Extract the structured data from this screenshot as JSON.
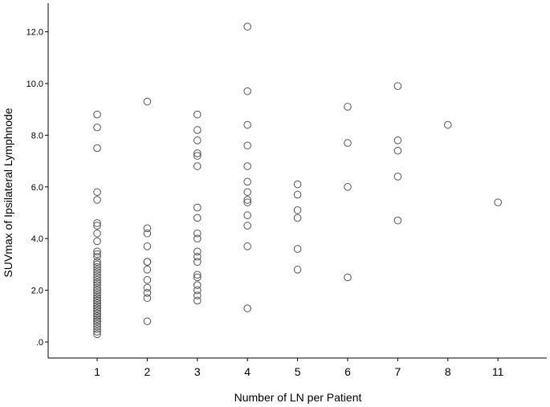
{
  "chart_data": {
    "type": "scatter",
    "title": "",
    "xlabel": "Number of LN per Patient",
    "ylabel": "SUVmax of Ipsilateral Lymphnode",
    "categories": [
      "1",
      "2",
      "3",
      "4",
      "5",
      "6",
      "7",
      "8",
      "11"
    ],
    "y_ticks": [
      ".0",
      "2.0",
      "4.0",
      "6.0",
      "8.0",
      "10.0",
      "12.0"
    ],
    "ylim": [
      -0.6,
      13.1
    ],
    "grid": false,
    "marker": "open-circle",
    "marker_color": "#555555",
    "points": [
      {
        "x": "1",
        "y": 8.8
      },
      {
        "x": "1",
        "y": 8.3
      },
      {
        "x": "1",
        "y": 7.5
      },
      {
        "x": "1",
        "y": 5.8
      },
      {
        "x": "1",
        "y": 5.5
      },
      {
        "x": "1",
        "y": 4.6
      },
      {
        "x": "1",
        "y": 4.5
      },
      {
        "x": "1",
        "y": 4.2
      },
      {
        "x": "1",
        "y": 3.9
      },
      {
        "x": "1",
        "y": 3.5
      },
      {
        "x": "1",
        "y": 3.3
      },
      {
        "x": "1",
        "y": 3.0
      },
      {
        "x": "1",
        "y": 2.8
      },
      {
        "x": "1",
        "y": 2.6
      },
      {
        "x": "1",
        "y": 2.4
      },
      {
        "x": "1",
        "y": 2.2
      },
      {
        "x": "1",
        "y": 2.0
      },
      {
        "x": "1",
        "y": 1.8
      },
      {
        "x": "1",
        "y": 1.6
      },
      {
        "x": "1",
        "y": 1.4
      },
      {
        "x": "1",
        "y": 1.2
      },
      {
        "x": "1",
        "y": 1.0
      },
      {
        "x": "1",
        "y": 0.8
      },
      {
        "x": "1",
        "y": 0.6
      },
      {
        "x": "1",
        "y": 0.4
      },
      {
        "x": "1",
        "y": 0.3
      },
      {
        "x": "1",
        "y": 3.4
      },
      {
        "x": "1",
        "y": 2.9
      },
      {
        "x": "1",
        "y": 2.5
      },
      {
        "x": "1",
        "y": 2.1
      },
      {
        "x": "1",
        "y": 1.7
      },
      {
        "x": "1",
        "y": 1.3
      },
      {
        "x": "1",
        "y": 0.9
      },
      {
        "x": "1",
        "y": 0.5
      },
      {
        "x": "1",
        "y": 3.1
      },
      {
        "x": "1",
        "y": 2.3
      },
      {
        "x": "1",
        "y": 1.9
      },
      {
        "x": "1",
        "y": 1.5
      },
      {
        "x": "1",
        "y": 1.1
      },
      {
        "x": "1",
        "y": 0.7
      },
      {
        "x": "1",
        "y": 2.7
      },
      {
        "x": "1",
        "y": 1.6
      },
      {
        "x": "1",
        "y": 1.2
      },
      {
        "x": "1",
        "y": 0.8
      },
      {
        "x": "1",
        "y": 1.4
      },
      {
        "x": "1",
        "y": 1.8
      },
      {
        "x": "1",
        "y": 1.0
      },
      {
        "x": "1",
        "y": 0.9
      },
      {
        "x": "1",
        "y": 1.3
      },
      {
        "x": "1",
        "y": 1.7
      },
      {
        "x": "1",
        "y": 2.0
      },
      {
        "x": "1",
        "y": 1.1
      },
      {
        "x": "1",
        "y": 1.5
      },
      {
        "x": "1",
        "y": 0.8
      },
      {
        "x": "1",
        "y": 1.6
      },
      {
        "x": "1",
        "y": 2.3
      },
      {
        "x": "2",
        "y": 9.3
      },
      {
        "x": "2",
        "y": 4.4
      },
      {
        "x": "2",
        "y": 4.2
      },
      {
        "x": "2",
        "y": 3.7
      },
      {
        "x": "2",
        "y": 3.1
      },
      {
        "x": "2",
        "y": 3.1
      },
      {
        "x": "2",
        "y": 2.8
      },
      {
        "x": "2",
        "y": 2.4
      },
      {
        "x": "2",
        "y": 2.1
      },
      {
        "x": "2",
        "y": 1.9
      },
      {
        "x": "2",
        "y": 1.7
      },
      {
        "x": "2",
        "y": 0.8
      },
      {
        "x": "3",
        "y": 8.8
      },
      {
        "x": "3",
        "y": 8.2
      },
      {
        "x": "3",
        "y": 7.8
      },
      {
        "x": "3",
        "y": 7.3
      },
      {
        "x": "3",
        "y": 7.2
      },
      {
        "x": "3",
        "y": 6.8
      },
      {
        "x": "3",
        "y": 5.2
      },
      {
        "x": "3",
        "y": 4.8
      },
      {
        "x": "3",
        "y": 4.2
      },
      {
        "x": "3",
        "y": 4.0
      },
      {
        "x": "3",
        "y": 3.5
      },
      {
        "x": "3",
        "y": 3.3
      },
      {
        "x": "3",
        "y": 3.1
      },
      {
        "x": "3",
        "y": 2.6
      },
      {
        "x": "3",
        "y": 2.5
      },
      {
        "x": "3",
        "y": 2.2
      },
      {
        "x": "3",
        "y": 2.0
      },
      {
        "x": "3",
        "y": 1.8
      },
      {
        "x": "3",
        "y": 1.6
      },
      {
        "x": "4",
        "y": 12.2
      },
      {
        "x": "4",
        "y": 9.7
      },
      {
        "x": "4",
        "y": 8.4
      },
      {
        "x": "4",
        "y": 7.6
      },
      {
        "x": "4",
        "y": 6.8
      },
      {
        "x": "4",
        "y": 6.2
      },
      {
        "x": "4",
        "y": 5.8
      },
      {
        "x": "4",
        "y": 5.5
      },
      {
        "x": "4",
        "y": 5.4
      },
      {
        "x": "4",
        "y": 4.9
      },
      {
        "x": "4",
        "y": 4.5
      },
      {
        "x": "4",
        "y": 3.7
      },
      {
        "x": "4",
        "y": 1.3
      },
      {
        "x": "5",
        "y": 6.1
      },
      {
        "x": "5",
        "y": 5.7
      },
      {
        "x": "5",
        "y": 5.1
      },
      {
        "x": "5",
        "y": 4.8
      },
      {
        "x": "5",
        "y": 3.6
      },
      {
        "x": "5",
        "y": 2.8
      },
      {
        "x": "6",
        "y": 9.1
      },
      {
        "x": "6",
        "y": 7.7
      },
      {
        "x": "6",
        "y": 6.0
      },
      {
        "x": "6",
        "y": 2.5
      },
      {
        "x": "7",
        "y": 9.9
      },
      {
        "x": "7",
        "y": 7.8
      },
      {
        "x": "7",
        "y": 7.4
      },
      {
        "x": "7",
        "y": 6.4
      },
      {
        "x": "7",
        "y": 4.7
      },
      {
        "x": "8",
        "y": 8.4
      },
      {
        "x": "11",
        "y": 5.4
      }
    ]
  }
}
